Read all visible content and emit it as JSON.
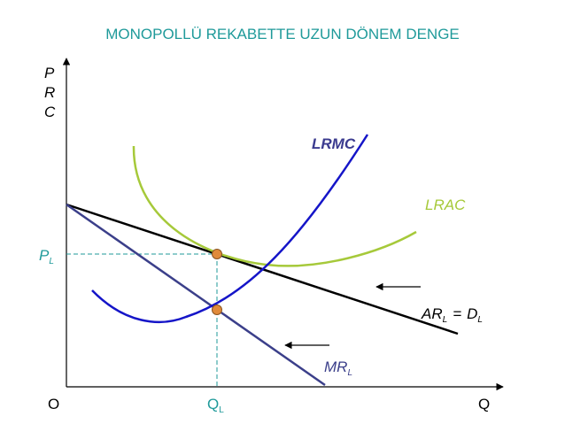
{
  "title": "MONOPOLLÜ REKABETTE UZUN DÖNEM DENGE",
  "y_axis_label": [
    "P",
    "R",
    "C"
  ],
  "origin": "O",
  "x_axis_label": "Q",
  "equilibrium_quantity": {
    "text": "Q",
    "subscript": "L"
  },
  "equilibrium_price": {
    "text": "P",
    "subscript": "L"
  },
  "curves": [
    {
      "label": "LRMC"
    },
    {
      "label": "LRAC"
    },
    {
      "label": "AR",
      "subscript": "L",
      "equals": "=",
      "label2": "D",
      "subscript2": "L"
    },
    {
      "label": "MR",
      "subscript": "L"
    }
  ]
}
